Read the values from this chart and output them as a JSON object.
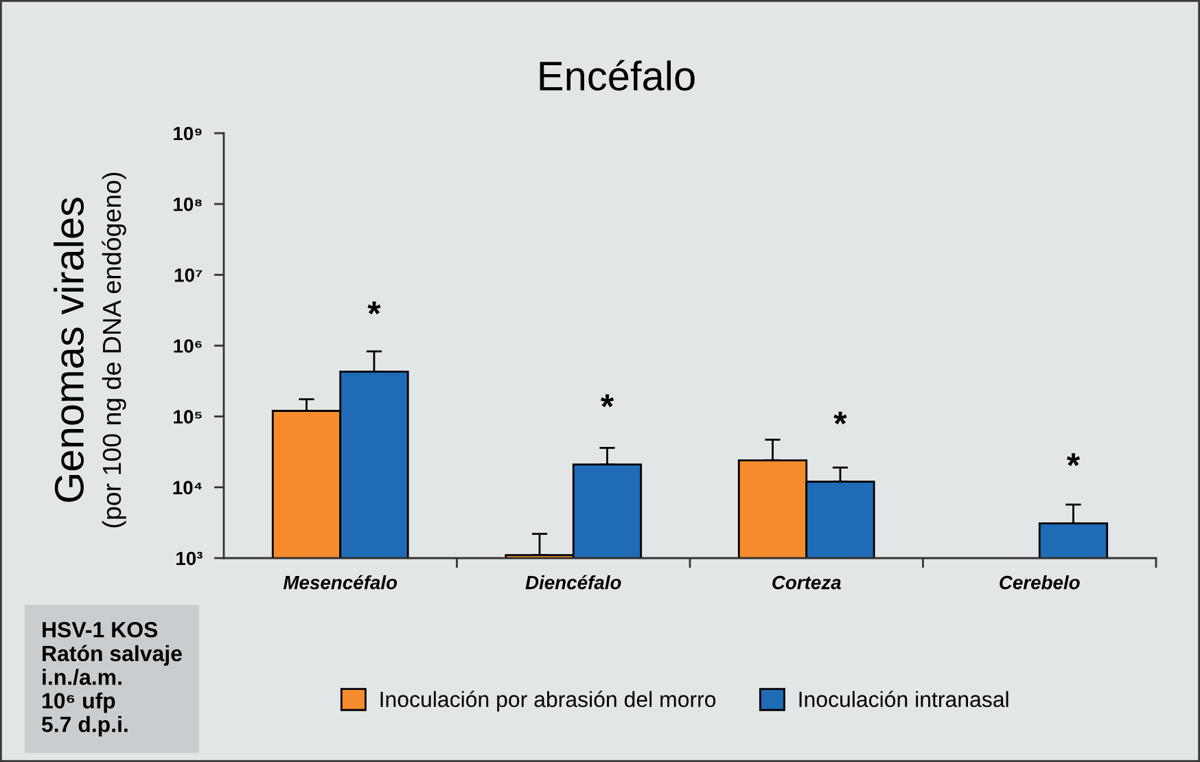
{
  "chart_data": {
    "type": "bar",
    "title": "Encéfalo",
    "ylabel": "Genomas virales\n(por 100 ng de DNA endógeno)",
    "categories": [
      "Mesencéfalo",
      "Diencéfalo",
      "Corteza",
      "Cerebelo"
    ],
    "series": [
      {
        "name": "Inoculación por abrasión del morro",
        "color": "#f58b2c",
        "values": [
          120000,
          1100,
          24000,
          null
        ],
        "errors": [
          [
            120000,
            175000
          ],
          [
            1100,
            2200
          ],
          [
            24000,
            47000
          ],
          null
        ]
      },
      {
        "name": "Inoculación intranasal",
        "color": "#1f6bb5",
        "values": [
          430000,
          21000,
          12000,
          3100
        ],
        "errors": [
          [
            430000,
            830000
          ],
          [
            21000,
            36000
          ],
          [
            12000,
            19000
          ],
          [
            3100,
            5700
          ]
        ]
      }
    ],
    "log": "y",
    "ylim": [
      1000,
      1000000000
    ],
    "yticks": [
      {
        "value": 1000,
        "label": "10³"
      },
      {
        "value": 10000,
        "label": "10⁴"
      },
      {
        "value": 100000,
        "label": "10⁵"
      },
      {
        "value": 1000000,
        "label": "10⁶"
      },
      {
        "value": 10000000,
        "label": "10⁷"
      },
      {
        "value": 100000000,
        "label": "10⁸"
      },
      {
        "value": 1000000000,
        "label": "10⁹"
      }
    ],
    "annotations": [
      {
        "text": "*",
        "x": "Mesencéfalo",
        "y": 430000
      },
      {
        "text": "*",
        "x": "Diencéfalo",
        "y": 21000
      },
      {
        "text": "*",
        "x": "Corteza",
        "y": 12000
      },
      {
        "text": "*",
        "x": "Cerebelo",
        "y": 3100
      },
      "HSV-1 KOS\nRatón salvaje\ni.n./a.m.\n10⁶ ufp\n5.7 d.p.i."
    ],
    "legend": "bottom"
  }
}
